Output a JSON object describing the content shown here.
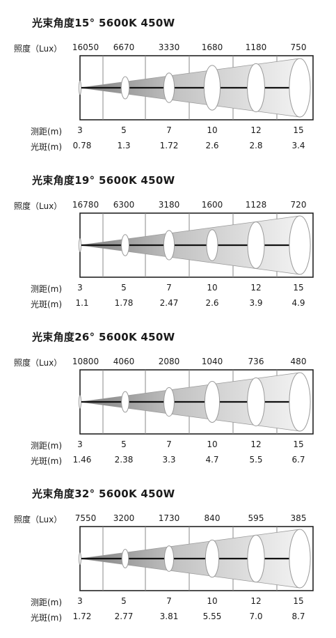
{
  "labels": {
    "lux": "照度（Lux）",
    "distance": "测距(m)",
    "spot": "光斑(m)"
  },
  "colors": {
    "beam_dark": "#7d7d7d",
    "beam_light": "#f2f2f2",
    "frame": "#222222",
    "axis": "#111111"
  },
  "chart_data": [
    {
      "type": "table",
      "title": "光束角度15°  5600K   450W",
      "distance": [
        "3",
        "5",
        "7",
        "10",
        "12",
        "15"
      ],
      "lux": [
        "16050",
        "6670",
        "3330",
        "1680",
        "1180",
        "750"
      ],
      "spot": [
        "0.78",
        "1.3",
        "1.72",
        "2.6",
        "2.8",
        "3.4"
      ]
    },
    {
      "type": "table",
      "title": "光束角度19°  5600K   450W",
      "distance": [
        "3",
        "5",
        "7",
        "10",
        "12",
        "15"
      ],
      "lux": [
        "16780",
        "6300",
        "3180",
        "1600",
        "1128",
        "720"
      ],
      "spot": [
        "1.1",
        "1.78",
        "2.47",
        "2.6",
        "3.9",
        "4.9"
      ]
    },
    {
      "type": "table",
      "title": "光束角度26°  5600K   450W",
      "distance": [
        "3",
        "5",
        "7",
        "10",
        "12",
        "15"
      ],
      "lux": [
        "10800",
        "4060",
        "2080",
        "1040",
        "736",
        "480"
      ],
      "spot": [
        "1.46",
        "2.38",
        "3.3",
        "4.7",
        "5.5",
        "6.7"
      ]
    },
    {
      "type": "table",
      "title": "光束角度32°  5600K   450W",
      "distance": [
        "3",
        "5",
        "7",
        "10",
        "12",
        "15"
      ],
      "lux": [
        "7550",
        "3200",
        "1730",
        "840",
        "595",
        "385"
      ],
      "spot": [
        "1.72",
        "2.77",
        "3.81",
        "5.55",
        "7.0",
        "8.7"
      ]
    }
  ]
}
